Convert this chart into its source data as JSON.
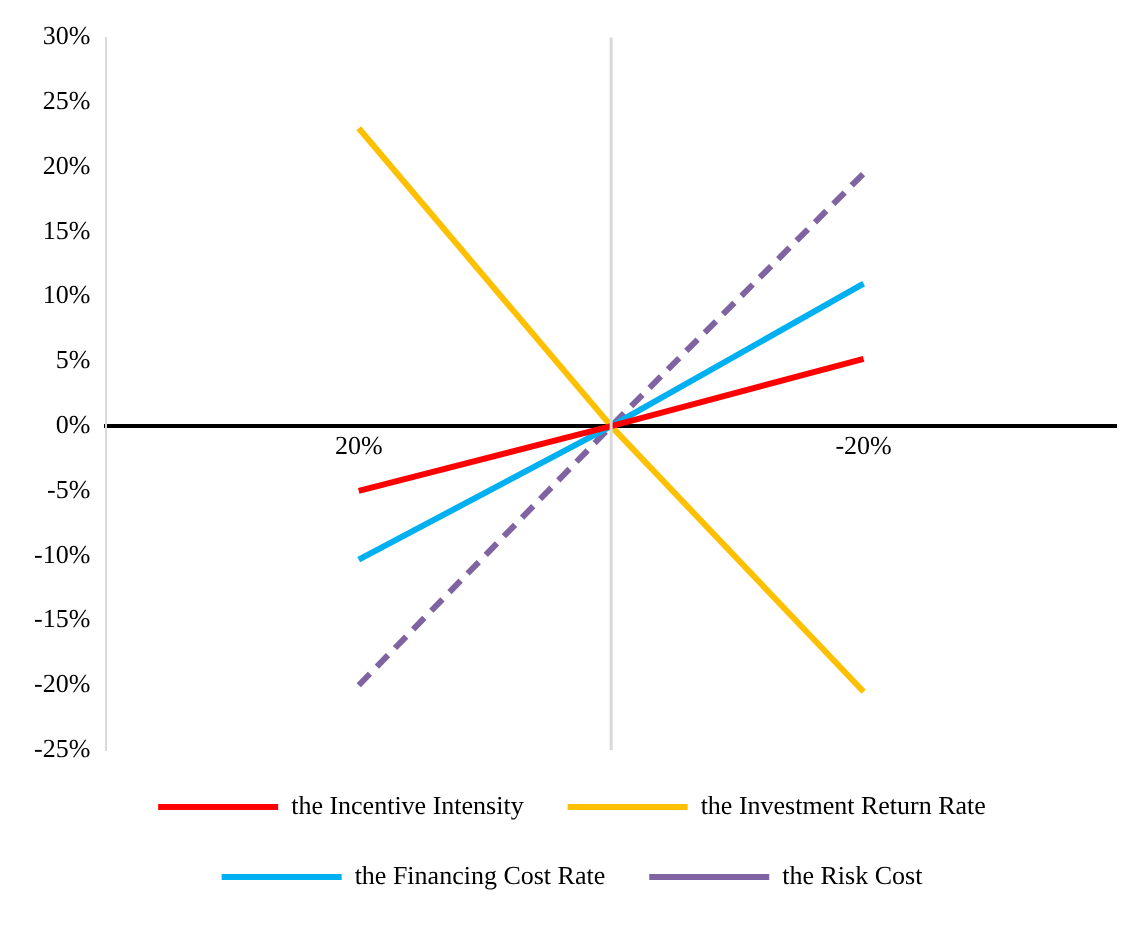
{
  "chart_data": {
    "type": "line",
    "x": [
      20,
      0,
      -20
    ],
    "xlim": [
      40,
      -40
    ],
    "xticks": [
      {
        "value": 20,
        "label": "20%"
      },
      {
        "value": -20,
        "label": "-20%"
      }
    ],
    "ylim": [
      -25,
      30
    ],
    "yticks": [
      {
        "value": -25,
        "label": "-25%"
      },
      {
        "value": -20,
        "label": "-20%"
      },
      {
        "value": -15,
        "label": "-15%"
      },
      {
        "value": -10,
        "label": "-10%"
      },
      {
        "value": -5,
        "label": "-5%"
      },
      {
        "value": 0,
        "label": "0%"
      },
      {
        "value": 5,
        "label": "5%"
      },
      {
        "value": 10,
        "label": "10%"
      },
      {
        "value": 15,
        "label": "15%"
      },
      {
        "value": 20,
        "label": "20%"
      },
      {
        "value": 25,
        "label": "25%"
      },
      {
        "value": 30,
        "label": "30%"
      }
    ],
    "series": [
      {
        "name": "the Incentive Intensity",
        "color": "#ff0000",
        "values": [
          -5,
          0,
          5.2
        ]
      },
      {
        "name": "the Investment Return Rate",
        "color": "#ffc000",
        "values": [
          23,
          0,
          -20.5
        ]
      },
      {
        "name": "the Financing Cost Rate",
        "color": "#00b0f0",
        "values": [
          -10.3,
          0,
          11
        ]
      },
      {
        "name": "the Risk Cost",
        "color": "#8064a2",
        "values": [
          -20,
          0,
          19.5
        ],
        "line_style": "dashed"
      }
    ],
    "ref_lines": [
      {
        "axis": "x",
        "value": 0,
        "color": "#d9d9d9"
      }
    ],
    "grid": false,
    "legend": "bottom",
    "marker": "none",
    "line_style": "solid"
  }
}
